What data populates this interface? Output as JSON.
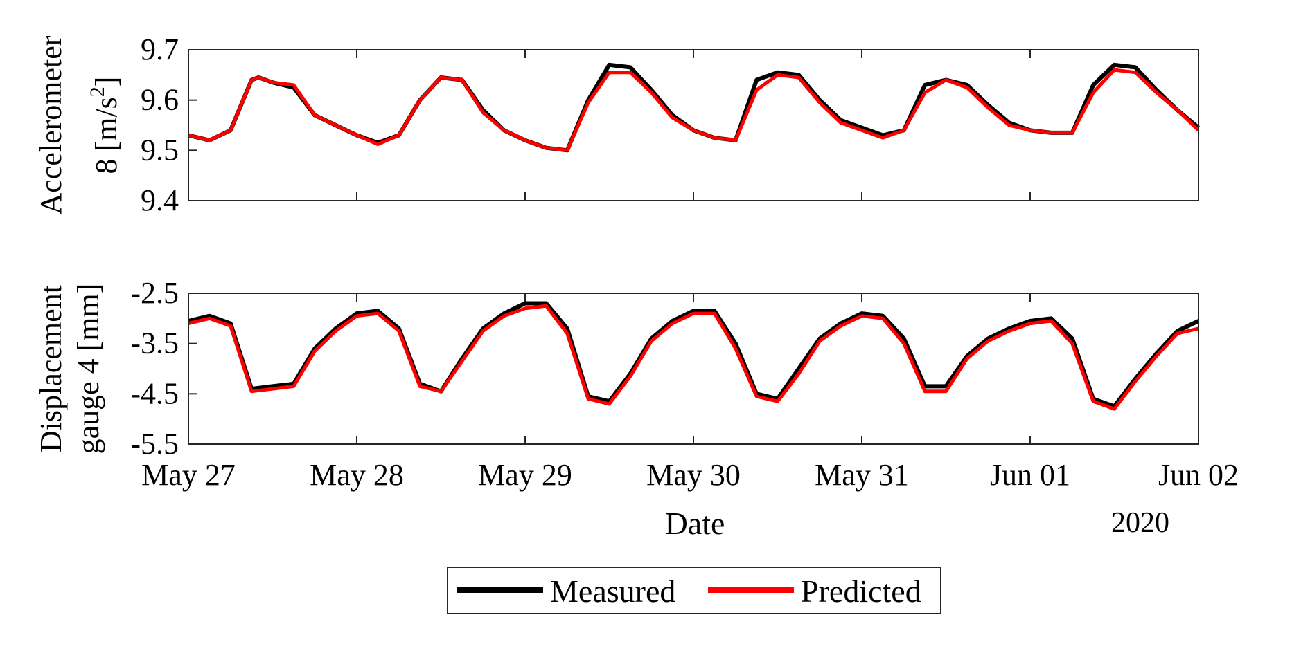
{
  "chart_data": [
    {
      "type": "line",
      "ylabel_lines": [
        "Accelerometer",
        "8 [m/s",
        "2",
        "]"
      ],
      "ylim": [
        9.4,
        9.7
      ],
      "yticks": [
        9.4,
        9.5,
        9.6,
        9.7
      ],
      "ytick_labels": [
        "9.4",
        "9.5",
        "9.6",
        "9.7"
      ],
      "xlim": [
        "2020-05-27",
        "2020-06-02"
      ],
      "grid": false,
      "series": [
        {
          "name": "Measured",
          "color": "#000000",
          "x": [
            "2020-05-27 00:00",
            "2020-05-27 03:00",
            "2020-05-27 06:00",
            "2020-05-27 09:00",
            "2020-05-27 10:00",
            "2020-05-27 12:00",
            "2020-05-27 15:00",
            "2020-05-27 18:00",
            "2020-05-27 21:00",
            "2020-05-28 00:00",
            "2020-05-28 03:00",
            "2020-05-28 06:00",
            "2020-05-28 09:00",
            "2020-05-28 12:00",
            "2020-05-28 15:00",
            "2020-05-28 18:00",
            "2020-05-28 21:00",
            "2020-05-29 00:00",
            "2020-05-29 03:00",
            "2020-05-29 06:00",
            "2020-05-29 09:00",
            "2020-05-29 12:00",
            "2020-05-29 15:00",
            "2020-05-29 18:00",
            "2020-05-29 21:00",
            "2020-05-30 00:00",
            "2020-05-30 03:00",
            "2020-05-30 06:00",
            "2020-05-30 09:00",
            "2020-05-30 12:00",
            "2020-05-30 15:00",
            "2020-05-30 18:00",
            "2020-05-30 21:00",
            "2020-05-31 00:00",
            "2020-05-31 03:00",
            "2020-05-31 06:00",
            "2020-05-31 09:00",
            "2020-05-31 12:00",
            "2020-05-31 15:00",
            "2020-05-31 18:00",
            "2020-05-31 21:00",
            "2020-06-01 00:00",
            "2020-06-01 03:00",
            "2020-06-01 06:00",
            "2020-06-01 09:00",
            "2020-06-01 12:00",
            "2020-06-01 15:00",
            "2020-06-01 18:00",
            "2020-06-01 21:00",
            "2020-06-02 00:00"
          ],
          "y": [
            9.53,
            9.52,
            9.54,
            9.64,
            9.645,
            9.635,
            9.625,
            9.57,
            9.55,
            9.53,
            9.515,
            9.53,
            9.6,
            9.645,
            9.64,
            9.58,
            9.54,
            9.52,
            9.505,
            9.5,
            9.6,
            9.67,
            9.665,
            9.62,
            9.57,
            9.54,
            9.525,
            9.52,
            9.64,
            9.655,
            9.65,
            9.6,
            9.56,
            9.545,
            9.53,
            9.54,
            9.63,
            9.64,
            9.63,
            9.59,
            9.555,
            9.54,
            9.535,
            9.535,
            9.63,
            9.67,
            9.665,
            9.62,
            9.58,
            9.545
          ]
        },
        {
          "name": "Predicted",
          "color": "#ff0000",
          "x": [
            "2020-05-27 00:00",
            "2020-05-27 03:00",
            "2020-05-27 06:00",
            "2020-05-27 09:00",
            "2020-05-27 10:00",
            "2020-05-27 12:00",
            "2020-05-27 15:00",
            "2020-05-27 18:00",
            "2020-05-27 21:00",
            "2020-05-28 00:00",
            "2020-05-28 03:00",
            "2020-05-28 06:00",
            "2020-05-28 09:00",
            "2020-05-28 12:00",
            "2020-05-28 15:00",
            "2020-05-28 18:00",
            "2020-05-28 21:00",
            "2020-05-29 00:00",
            "2020-05-29 03:00",
            "2020-05-29 06:00",
            "2020-05-29 09:00",
            "2020-05-29 12:00",
            "2020-05-29 15:00",
            "2020-05-29 18:00",
            "2020-05-29 21:00",
            "2020-05-30 00:00",
            "2020-05-30 03:00",
            "2020-05-30 06:00",
            "2020-05-30 09:00",
            "2020-05-30 12:00",
            "2020-05-30 15:00",
            "2020-05-30 18:00",
            "2020-05-30 21:00",
            "2020-05-31 00:00",
            "2020-05-31 03:00",
            "2020-05-31 06:00",
            "2020-05-31 09:00",
            "2020-05-31 12:00",
            "2020-05-31 15:00",
            "2020-05-31 18:00",
            "2020-05-31 21:00",
            "2020-06-01 00:00",
            "2020-06-01 03:00",
            "2020-06-01 06:00",
            "2020-06-01 09:00",
            "2020-06-01 12:00",
            "2020-06-01 15:00",
            "2020-06-01 18:00",
            "2020-06-01 21:00",
            "2020-06-02 00:00"
          ],
          "y": [
            9.53,
            9.52,
            9.54,
            9.64,
            9.645,
            9.635,
            9.63,
            9.57,
            9.55,
            9.53,
            9.512,
            9.53,
            9.6,
            9.645,
            9.64,
            9.575,
            9.54,
            9.52,
            9.505,
            9.5,
            9.595,
            9.655,
            9.655,
            9.615,
            9.565,
            9.54,
            9.525,
            9.52,
            9.62,
            9.65,
            9.645,
            9.595,
            9.555,
            9.54,
            9.525,
            9.54,
            9.615,
            9.64,
            9.625,
            9.585,
            9.55,
            9.54,
            9.535,
            9.535,
            9.615,
            9.66,
            9.655,
            9.615,
            9.58,
            9.54
          ]
        }
      ]
    },
    {
      "type": "line",
      "ylabel_lines": [
        "Displacement",
        "gauge 4 [mm]"
      ],
      "ylim": [
        -5.5,
        -2.5
      ],
      "yticks": [
        -5.5,
        -4.5,
        -3.5,
        -2.5
      ],
      "ytick_labels": [
        "-5.5",
        "-4.5",
        "-3.5",
        "-2.5"
      ],
      "xlim": [
        "2020-05-27",
        "2020-06-02"
      ],
      "xticks": [
        "2020-05-27",
        "2020-05-28",
        "2020-05-29",
        "2020-05-30",
        "2020-05-31",
        "2020-06-01",
        "2020-06-02"
      ],
      "xtick_labels": [
        "May 27",
        "May 28",
        "May 29",
        "May 30",
        "May 31",
        "Jun 01",
        "Jun 02"
      ],
      "xlabel": "Date",
      "x_secondary_label": "2020",
      "grid": false,
      "series": [
        {
          "name": "Measured",
          "color": "#000000",
          "x": [
            "2020-05-27 00:00",
            "2020-05-27 03:00",
            "2020-05-27 06:00",
            "2020-05-27 09:00",
            "2020-05-27 12:00",
            "2020-05-27 15:00",
            "2020-05-27 18:00",
            "2020-05-27 21:00",
            "2020-05-28 00:00",
            "2020-05-28 03:00",
            "2020-05-28 06:00",
            "2020-05-28 09:00",
            "2020-05-28 12:00",
            "2020-05-28 15:00",
            "2020-05-28 18:00",
            "2020-05-28 21:00",
            "2020-05-29 00:00",
            "2020-05-29 03:00",
            "2020-05-29 06:00",
            "2020-05-29 09:00",
            "2020-05-29 12:00",
            "2020-05-29 15:00",
            "2020-05-29 18:00",
            "2020-05-29 21:00",
            "2020-05-30 00:00",
            "2020-05-30 03:00",
            "2020-05-30 06:00",
            "2020-05-30 09:00",
            "2020-05-30 12:00",
            "2020-05-30 15:00",
            "2020-05-30 18:00",
            "2020-05-30 21:00",
            "2020-05-31 00:00",
            "2020-05-31 03:00",
            "2020-05-31 06:00",
            "2020-05-31 09:00",
            "2020-05-31 12:00",
            "2020-05-31 15:00",
            "2020-05-31 18:00",
            "2020-05-31 21:00",
            "2020-06-01 00:00",
            "2020-06-01 03:00",
            "2020-06-01 06:00",
            "2020-06-01 09:00",
            "2020-06-01 12:00",
            "2020-06-01 15:00",
            "2020-06-01 18:00",
            "2020-06-01 21:00",
            "2020-06-02 00:00"
          ],
          "y": [
            -3.05,
            -2.95,
            -3.1,
            -4.4,
            -4.35,
            -4.3,
            -3.6,
            -3.2,
            -2.9,
            -2.85,
            -3.2,
            -4.3,
            -4.45,
            -3.8,
            -3.2,
            -2.9,
            -2.7,
            -2.7,
            -3.2,
            -4.55,
            -4.65,
            -4.1,
            -3.4,
            -3.05,
            -2.85,
            -2.85,
            -3.5,
            -4.5,
            -4.6,
            -4.0,
            -3.4,
            -3.1,
            -2.9,
            -2.95,
            -3.4,
            -4.35,
            -4.35,
            -3.75,
            -3.4,
            -3.2,
            -3.05,
            -3.0,
            -3.4,
            -4.6,
            -4.75,
            -4.2,
            -3.7,
            -3.25,
            -3.05
          ]
        },
        {
          "name": "Predicted",
          "color": "#ff0000",
          "x": [
            "2020-05-27 00:00",
            "2020-05-27 03:00",
            "2020-05-27 06:00",
            "2020-05-27 09:00",
            "2020-05-27 12:00",
            "2020-05-27 15:00",
            "2020-05-27 18:00",
            "2020-05-27 21:00",
            "2020-05-28 00:00",
            "2020-05-28 03:00",
            "2020-05-28 06:00",
            "2020-05-28 09:00",
            "2020-05-28 12:00",
            "2020-05-28 15:00",
            "2020-05-28 18:00",
            "2020-05-28 21:00",
            "2020-05-29 00:00",
            "2020-05-29 03:00",
            "2020-05-29 06:00",
            "2020-05-29 09:00",
            "2020-05-29 12:00",
            "2020-05-29 15:00",
            "2020-05-29 18:00",
            "2020-05-29 21:00",
            "2020-05-30 00:00",
            "2020-05-30 03:00",
            "2020-05-30 06:00",
            "2020-05-30 09:00",
            "2020-05-30 12:00",
            "2020-05-30 15:00",
            "2020-05-30 18:00",
            "2020-05-30 21:00",
            "2020-05-31 00:00",
            "2020-05-31 03:00",
            "2020-05-31 06:00",
            "2020-05-31 09:00",
            "2020-05-31 12:00",
            "2020-05-31 15:00",
            "2020-05-31 18:00",
            "2020-05-31 21:00",
            "2020-06-01 00:00",
            "2020-06-01 03:00",
            "2020-06-01 06:00",
            "2020-06-01 09:00",
            "2020-06-01 12:00",
            "2020-06-01 15:00",
            "2020-06-01 18:00",
            "2020-06-01 21:00",
            "2020-06-02 00:00"
          ],
          "y": [
            -3.1,
            -3.0,
            -3.15,
            -4.45,
            -4.4,
            -4.35,
            -3.65,
            -3.25,
            -2.95,
            -2.9,
            -3.25,
            -4.35,
            -4.45,
            -3.85,
            -3.25,
            -2.95,
            -2.8,
            -2.75,
            -3.3,
            -4.6,
            -4.7,
            -4.15,
            -3.45,
            -3.1,
            -2.9,
            -2.9,
            -3.6,
            -4.55,
            -4.65,
            -4.1,
            -3.45,
            -3.15,
            -2.95,
            -3.0,
            -3.5,
            -4.45,
            -4.45,
            -3.8,
            -3.45,
            -3.25,
            -3.1,
            -3.05,
            -3.5,
            -4.65,
            -4.8,
            -4.25,
            -3.75,
            -3.3,
            -3.2
          ]
        }
      ]
    }
  ],
  "legend": {
    "placement": "bottom",
    "items": [
      {
        "label": "Measured",
        "color": "#000000"
      },
      {
        "label": "Predicted",
        "color": "#ff0000"
      }
    ]
  }
}
